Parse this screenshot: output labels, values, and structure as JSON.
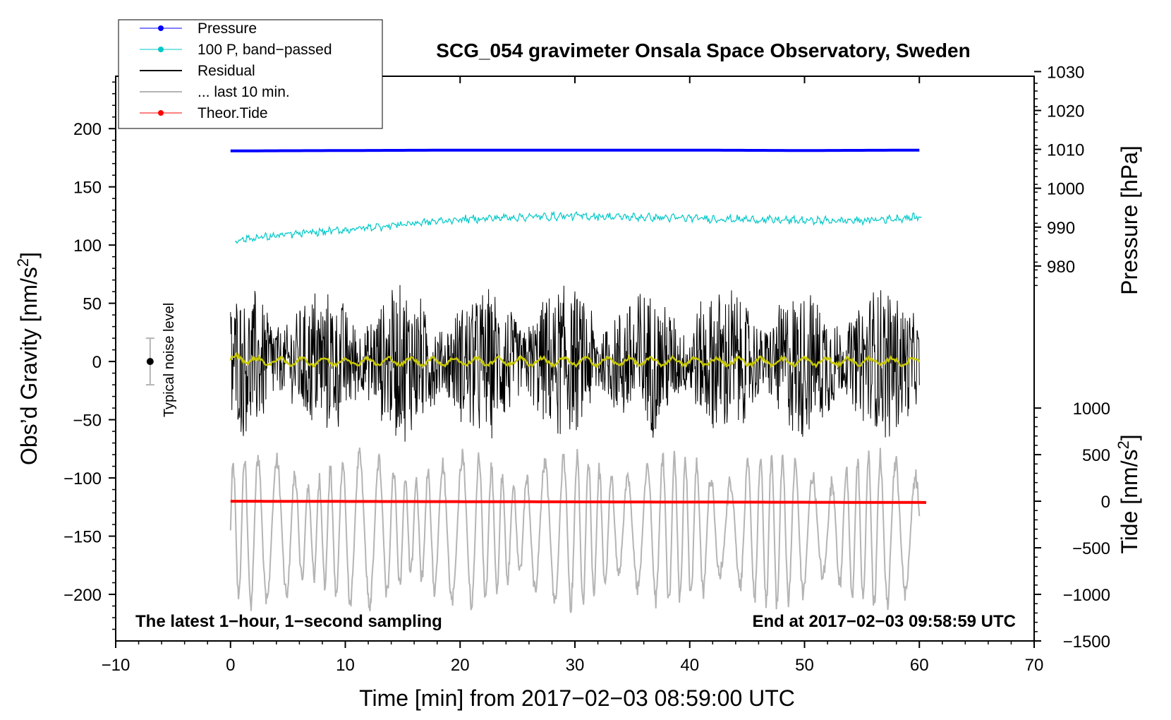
{
  "chart_data": {
    "type": "line",
    "title": "SCG_054 gravimeter Onsala Space Observatory, Sweden",
    "xlabel": "Time [min] from 2017−02−03 08:59:00 UTC",
    "ylabel_left": "Obs’d Gravity [nm/s",
    "ylabel_left_sup": "2",
    "ylabel_left_end": "]",
    "ylabel_right_pressure": "Pressure [hPa]",
    "ylabel_right_tide": "Tide [nm/s",
    "ylabel_right_tide_sup": "2",
    "ylabel_right_tide_end": "]",
    "xlim": [
      -10,
      70
    ],
    "ylim_left": [
      -240,
      245
    ],
    "xticks": [
      {
        "value": -10,
        "label": "−10"
      },
      {
        "value": 0,
        "label": "0"
      },
      {
        "value": 10,
        "label": "10"
      },
      {
        "value": 20,
        "label": "20"
      },
      {
        "value": 30,
        "label": "30"
      },
      {
        "value": 40,
        "label": "40"
      },
      {
        "value": 50,
        "label": "50"
      },
      {
        "value": 60,
        "label": "60"
      },
      {
        "value": 70,
        "label": "70"
      }
    ],
    "yticks_left": [
      {
        "value": 200,
        "label": "200"
      },
      {
        "value": 150,
        "label": "150"
      },
      {
        "value": 100,
        "label": "100"
      },
      {
        "value": 50,
        "label": "50"
      },
      {
        "value": 0,
        "label": "0"
      },
      {
        "value": -50,
        "label": "−50"
      },
      {
        "value": -100,
        "label": "−100"
      },
      {
        "value": -150,
        "label": "−150"
      },
      {
        "value": -200,
        "label": "−200"
      }
    ],
    "pressure_axis": {
      "range": [
        980,
        1030
      ],
      "left_equiv": [
        82,
        249
      ],
      "ticks": [
        {
          "value": 1030,
          "label": "1030"
        },
        {
          "value": 1020,
          "label": "1020"
        },
        {
          "value": 1010,
          "label": "1010"
        },
        {
          "value": 1000,
          "label": "1000"
        },
        {
          "value": 990,
          "label": "990"
        },
        {
          "value": 980,
          "label": "980"
        }
      ]
    },
    "tide_axis": {
      "range": [
        -1500,
        1000
      ],
      "left_equiv": [
        -240,
        -40
      ],
      "ticks": [
        {
          "value": 1000,
          "label": "1000"
        },
        {
          "value": 500,
          "label": "500"
        },
        {
          "value": 0,
          "label": "0"
        },
        {
          "value": -500,
          "label": "−500"
        },
        {
          "value": -1000,
          "label": "−1000"
        },
        {
          "value": -1500,
          "label": "−1500"
        }
      ]
    },
    "legend": {
      "position": "top-left",
      "entries": [
        {
          "label": "Pressure",
          "color": "#0000ff",
          "marker": true
        },
        {
          "label": "100 P, band−passed",
          "color": "#00c8c8",
          "marker": true
        },
        {
          "label": "Residual",
          "color": "#000000",
          "marker": false
        },
        {
          "label": "... last 10 min.",
          "color": "#b4b4b4",
          "marker": false
        },
        {
          "label": "Theor.Tide",
          "color": "#ff0000",
          "marker": true
        }
      ]
    },
    "series": [
      {
        "name": "Pressure",
        "color": "#0000ff",
        "units": "hPa",
        "x": [
          0,
          10,
          20,
          30,
          40,
          50,
          60
        ],
        "values": [
          1009.6,
          1009.7,
          1009.8,
          1009.8,
          1009.8,
          1009.7,
          1009.8
        ]
      },
      {
        "name": "100 P, band−passed",
        "color": "#00c8c8",
        "units": "nm/s2",
        "x": [
          0,
          5,
          10,
          15,
          20,
          25,
          30,
          35,
          40,
          45,
          50,
          55,
          60
        ],
        "values": [
          104,
          109,
          113,
          118,
          122,
          124,
          125,
          124,
          123,
          122,
          121,
          121,
          124
        ]
      },
      {
        "name": "Residual",
        "color": "#000000",
        "units": "nm/s2",
        "x_range": [
          0,
          60
        ],
        "mean": 0,
        "amplitude_envelope": 70
      },
      {
        "name": "... last 10 min.",
        "color": "#b4b4b4",
        "units": "nm/s2",
        "x_range": [
          0,
          60
        ],
        "mean": -145,
        "amplitude_envelope": 55
      },
      {
        "name": "Smoothed residual",
        "color": "#c8c800",
        "units": "nm/s2",
        "x_range": [
          0,
          60
        ],
        "mean": 0
      },
      {
        "name": "Theor.Tide",
        "color": "#ff0000",
        "units": "nm/s2",
        "x": [
          0,
          30,
          60
        ],
        "values": [
          0,
          0,
          0
        ]
      }
    ],
    "noise_marker": {
      "label": "Typical noise level",
      "x": -7,
      "y": 0,
      "range": [
        -20,
        20
      ]
    },
    "annotations": {
      "bottom_left": "The latest 1−hour, 1−second sampling",
      "bottom_right": "End at 2017−02−03 09:58:59 UTC"
    }
  }
}
